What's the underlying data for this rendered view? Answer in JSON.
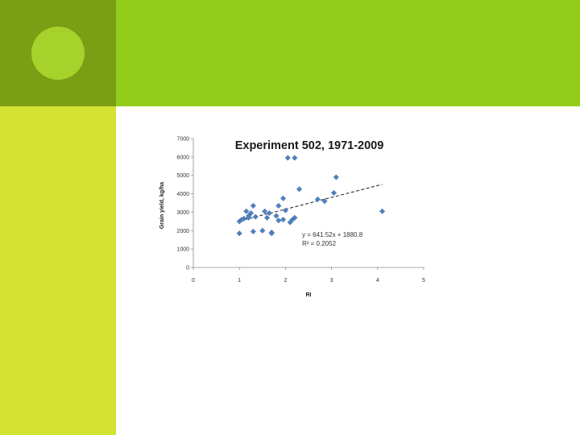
{
  "slide": {
    "colors": {
      "corner": "#7a9e14",
      "top_band": "#92cd1b",
      "side_band": "#d4e232",
      "circle": "#a6d22c"
    }
  },
  "chart_data": {
    "type": "scatter",
    "title": "Experiment 502, 1971-2009",
    "xlabel": "RI",
    "ylabel": "Grain yield, kg/ha",
    "xlim": [
      0,
      5
    ],
    "ylim": [
      0,
      7000
    ],
    "xticks": [
      "0",
      "1",
      "2",
      "3",
      "4",
      "5"
    ],
    "yticks": [
      "0",
      "1000",
      "2000",
      "3000",
      "4000",
      "5000",
      "6000",
      "7000"
    ],
    "grid": false,
    "legend": "none",
    "marker": {
      "shape": "diamond",
      "color": "#4f81bd"
    },
    "series": [
      {
        "points": [
          [
            1.0,
            1850
          ],
          [
            1.0,
            2500
          ],
          [
            1.05,
            2600
          ],
          [
            1.1,
            2650
          ],
          [
            1.15,
            3050
          ],
          [
            1.2,
            2800
          ],
          [
            1.2,
            2700
          ],
          [
            1.25,
            2950
          ],
          [
            1.3,
            3350
          ],
          [
            1.3,
            1950
          ],
          [
            1.35,
            2750
          ],
          [
            1.5,
            2000
          ],
          [
            1.55,
            3050
          ],
          [
            1.6,
            2700
          ],
          [
            1.65,
            2950
          ],
          [
            1.7,
            1900
          ],
          [
            1.7,
            1850
          ],
          [
            1.8,
            2800
          ],
          [
            1.85,
            3350
          ],
          [
            1.85,
            2550
          ],
          [
            1.95,
            3750
          ],
          [
            1.95,
            2600
          ],
          [
            2.0,
            3100
          ],
          [
            2.05,
            5950
          ],
          [
            2.1,
            2450
          ],
          [
            2.15,
            2600
          ],
          [
            2.2,
            2700
          ],
          [
            2.2,
            5950
          ],
          [
            2.3,
            4250
          ],
          [
            2.7,
            3700
          ],
          [
            2.85,
            3600
          ],
          [
            3.05,
            4050
          ],
          [
            3.1,
            4900
          ],
          [
            4.1,
            3050
          ]
        ]
      }
    ],
    "trendline": {
      "style": "dashed",
      "slope": 641.52,
      "intercept": 1880.8,
      "x_range": [
        1.0,
        4.1
      ],
      "equation_text": "y = 641.52x + 1880.8",
      "r2_text": "R² = 0.2052"
    }
  }
}
